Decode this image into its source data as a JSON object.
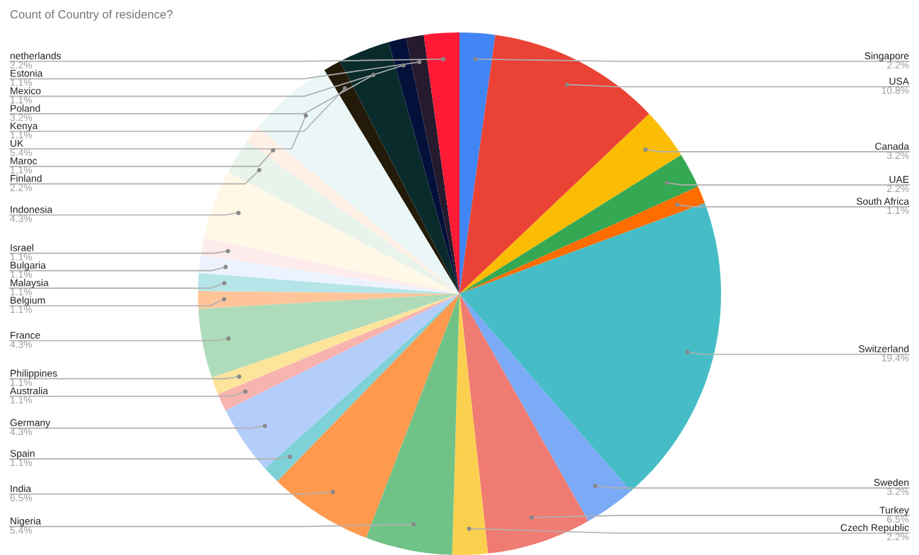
{
  "chart_data": {
    "type": "pie",
    "title": "Count of Country of residence?",
    "categories": [
      "Singapore",
      "USA",
      "Canada",
      "UAE",
      "South Africa",
      "Switzerland",
      "Sweden",
      "Turkey",
      "Czech Republic",
      "Nigeria",
      "India",
      "Spain",
      "Germany",
      "Australia",
      "Philippines",
      "France",
      "Belgium",
      "Malaysia",
      "Bulgaria",
      "Israel",
      "Indonesia",
      "Finland",
      "Maroc",
      "UK",
      "Kenya",
      "Poland",
      "Mexico",
      "Estonia",
      "netherlands"
    ],
    "values": [
      2.2,
      10.8,
      3.2,
      2.2,
      1.1,
      19.4,
      3.2,
      6.5,
      2.2,
      5.4,
      6.5,
      1.1,
      4.3,
      1.1,
      1.1,
      4.3,
      1.1,
      1.1,
      1.1,
      1.1,
      4.3,
      2.2,
      1.1,
      5.4,
      1.1,
      3.2,
      1.1,
      1.1,
      2.2
    ],
    "value_labels": [
      "2.2%",
      "10.8%",
      "3.2%",
      "2.2%",
      "1.1%",
      "19.4%",
      "3.2%",
      "6.5%",
      "2.2%",
      "5.4%",
      "6.5%",
      "1.1%",
      "4.3%",
      "1.1%",
      "1.1%",
      "4.3%",
      "1.1%",
      "1.1%",
      "1.1%",
      "1.1%",
      "4.3%",
      "2.2%",
      "1.1%",
      "5.4%",
      "1.1%",
      "3.2%",
      "1.1%",
      "1.1%",
      "2.2%"
    ],
    "colors": [
      "#4285f4",
      "#ea4335",
      "#fbbc04",
      "#34a853",
      "#ff6d01",
      "#46bdc6",
      "#7baaf7",
      "#f07b72",
      "#fcd04f",
      "#71c287",
      "#ff994d",
      "#7ed1d7",
      "#b3cefb",
      "#f7b4ae",
      "#fde49b",
      "#aedcba",
      "#ffc599",
      "#b5e5e8",
      "#ecf3fe",
      "#fdeceb",
      "#fff8e6",
      "#e8f3eb",
      "#fff0e6",
      "#ebf6f7",
      "#241a09",
      "#0a2b2b",
      "#03103a",
      "#261a2e",
      "#ff1a35"
    ],
    "legend": false
  }
}
